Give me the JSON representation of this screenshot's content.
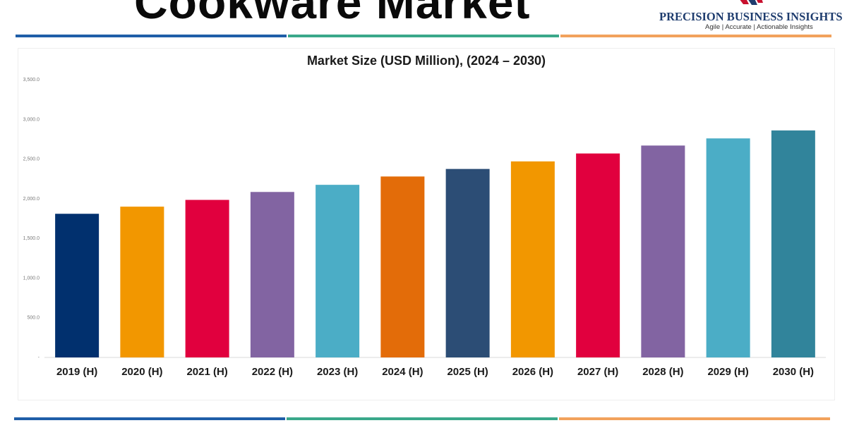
{
  "header": {
    "title": "Cookware Market"
  },
  "brand": {
    "name": "PRECISION BUSINESS INSIGHTS",
    "tagline": "Agile | Accurate | Actionable Insights"
  },
  "colors": {
    "stripe_navy": "#1f5ea8",
    "stripe_teal": "#3aa88a",
    "stripe_orange": "#f2a25c"
  },
  "chart_data": {
    "type": "bar",
    "title": "Market Size (USD Million), (2024 – 2030)",
    "xlabel": "",
    "ylabel": "",
    "ylim": [
      0,
      3500
    ],
    "grid": false,
    "yticks": [
      0,
      500,
      1000,
      1500,
      2000,
      2500,
      3000,
      3500
    ],
    "ytick_labels": [
      "-",
      "500.0",
      "1,000.0",
      "1,500.0",
      "2,000.0",
      "2,500.0",
      "3,000.0",
      "3,500.0"
    ],
    "categories": [
      "2019 (H)",
      "2020 (H)",
      "2021 (H)",
      "2022 (H)",
      "2023 (H)",
      "2024 (H)",
      "2025 (H)",
      "2026 (H)",
      "2027 (H)",
      "2028 (H)",
      "2029 (H)",
      "2030 (H)"
    ],
    "values": [
      1810,
      1900,
      1985,
      2085,
      2175,
      2280,
      2375,
      2470,
      2570,
      2670,
      2760,
      2860
    ],
    "bar_colors": [
      "#01306e",
      "#f29700",
      "#e1003e",
      "#8264a2",
      "#4badc6",
      "#e36c09",
      "#2c4d75",
      "#f29700",
      "#e1003e",
      "#8264a2",
      "#4badc6",
      "#31849b"
    ]
  }
}
